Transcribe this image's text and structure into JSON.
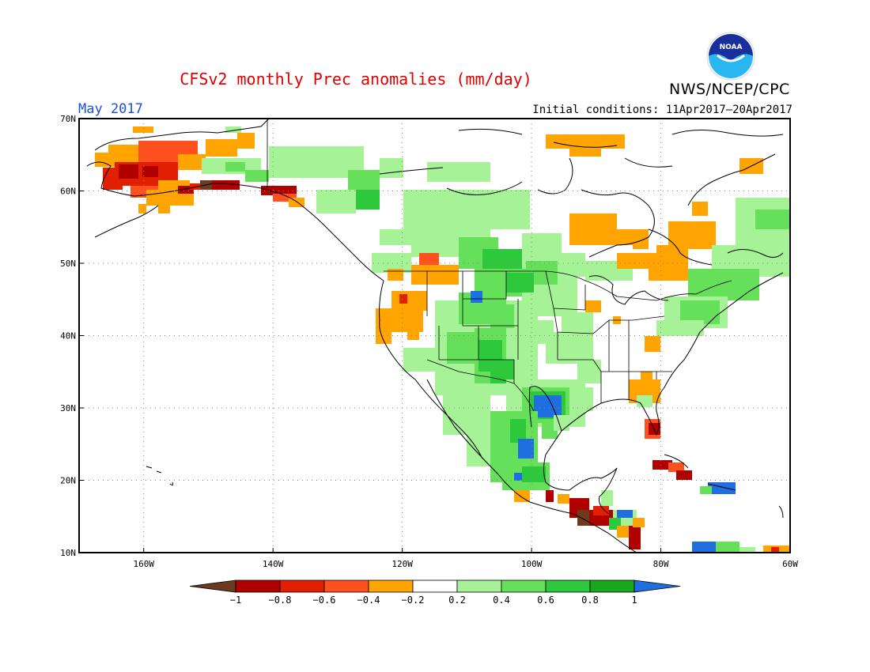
{
  "header": {
    "title": "CFSv2 monthly Prec anomalies (mm/day)",
    "month": "May 2017",
    "initial_conditions": "Initial conditions: 11Apr2017–20Apr2017",
    "agency": "NWS/NCEP/CPC",
    "logo_text": "NOAA"
  },
  "map": {
    "lat_ticks": [
      "70N",
      "60N",
      "50N",
      "40N",
      "30N",
      "20N",
      "10N"
    ],
    "lon_ticks": [
      "160W",
      "140W",
      "120W",
      "100W",
      "80W",
      "60W"
    ],
    "lon_range": [
      -170,
      -60
    ],
    "lat_range": [
      10,
      70
    ],
    "grid": "dotted"
  },
  "colorbar": {
    "labels": [
      "−1",
      "−0.8",
      "−0.6",
      "−0.4",
      "−0.2",
      "0.2",
      "0.4",
      "0.6",
      "0.8",
      "1"
    ],
    "colors": [
      "#6b3a1f",
      "#b00000",
      "#e02000",
      "#ff5020",
      "#ffa400",
      "#ffffff",
      "#a6f296",
      "#66e05a",
      "#2ec83c",
      "#17a81c",
      "#1f6fe0"
    ]
  },
  "colors": {
    "title": "#e00000",
    "month": "#1a4fe0",
    "dry_strong": "#b00000",
    "dry_med": "#e03a14",
    "dry_light": "#ffa400",
    "wet_light": "#a6f296",
    "wet_med": "#66e05a",
    "wet_strong": "#17a81c",
    "wet_extreme": "#1f6fe0"
  }
}
